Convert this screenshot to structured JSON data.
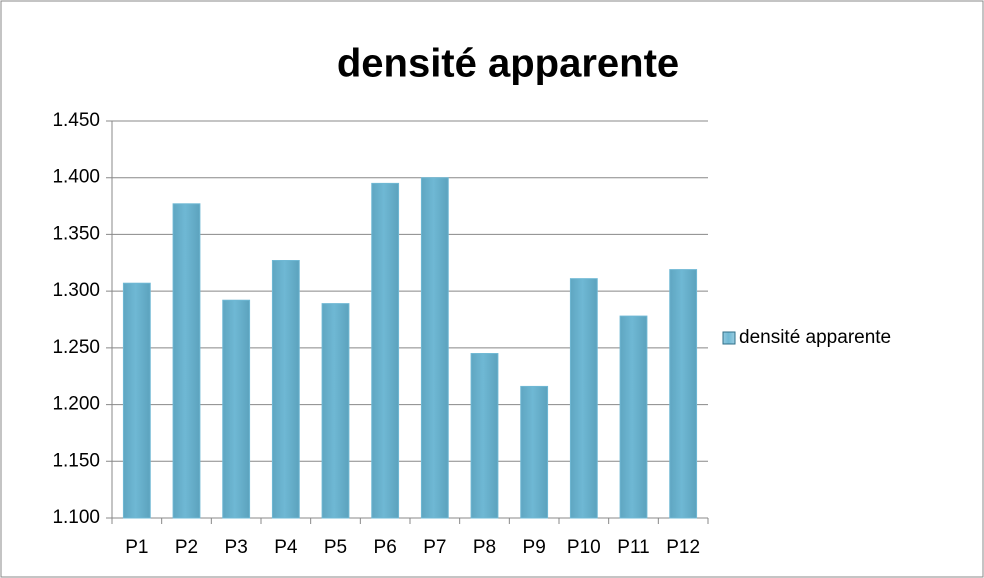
{
  "chart_data": {
    "type": "bar",
    "title": "densité apparente",
    "categories": [
      "P1",
      "P2",
      "P3",
      "P4",
      "P5",
      "P6",
      "P7",
      "P8",
      "P9",
      "P10",
      "P11",
      "P12"
    ],
    "series": [
      {
        "name": "densité apparente",
        "color": "#6fb8d4",
        "values": [
          1.307,
          1.377,
          1.292,
          1.327,
          1.289,
          1.395,
          1.4,
          1.245,
          1.216,
          1.311,
          1.278,
          1.319
        ]
      }
    ],
    "ylim": [
      1.1,
      1.45
    ],
    "yticks": [
      {
        "value": 1.1,
        "label": "1.100"
      },
      {
        "value": 1.15,
        "label": "1.150"
      },
      {
        "value": 1.2,
        "label": "1.200"
      },
      {
        "value": 1.25,
        "label": "1.250"
      },
      {
        "value": 1.3,
        "label": "1.300"
      },
      {
        "value": 1.35,
        "label": "1.350"
      },
      {
        "value": 1.4,
        "label": "1.400"
      },
      {
        "value": 1.45,
        "label": "1.450"
      }
    ],
    "grid": true,
    "legend": "right"
  }
}
